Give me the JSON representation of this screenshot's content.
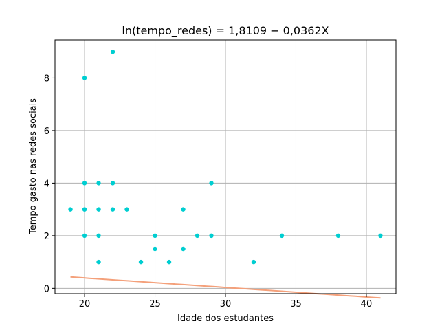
{
  "chart_data": {
    "type": "scatter",
    "title": "ln(tempo_redes) = 1,8109 − 0,0362X",
    "xlabel": "Idade dos estudantes",
    "ylabel": "Tempo gasto nas redes sociais",
    "xlim": [
      17.9,
      42.1
    ],
    "ylim": [
      -0.2,
      9.45
    ],
    "xticks": [
      20,
      25,
      30,
      35,
      40
    ],
    "yticks": [
      0,
      2,
      4,
      6,
      8
    ],
    "grid": true,
    "colors": {
      "points": "#00CED1",
      "fit_line": "#F4A07A",
      "grid": "#B0B0B0",
      "axes": "#000000"
    },
    "series": [
      {
        "type": "scatter",
        "points": [
          [
            19,
            3
          ],
          [
            20,
            8
          ],
          [
            20,
            4
          ],
          [
            20,
            3
          ],
          [
            20,
            3
          ],
          [
            20,
            2
          ],
          [
            21,
            4
          ],
          [
            21,
            3
          ],
          [
            21,
            2
          ],
          [
            21,
            1
          ],
          [
            22,
            9
          ],
          [
            22,
            4
          ],
          [
            22,
            3
          ],
          [
            23,
            3
          ],
          [
            24,
            1
          ],
          [
            25,
            2
          ],
          [
            25,
            1.5
          ],
          [
            26,
            1
          ],
          [
            27,
            3
          ],
          [
            27,
            1.5
          ],
          [
            28,
            2
          ],
          [
            29,
            4
          ],
          [
            29,
            2
          ],
          [
            32,
            1
          ],
          [
            34,
            2
          ],
          [
            38,
            2
          ],
          [
            41,
            2
          ]
        ]
      },
      {
        "type": "line",
        "intercept": 1.8109,
        "slope": -0.0362,
        "transform": "exp",
        "x_range": [
          19,
          41
        ]
      }
    ]
  }
}
